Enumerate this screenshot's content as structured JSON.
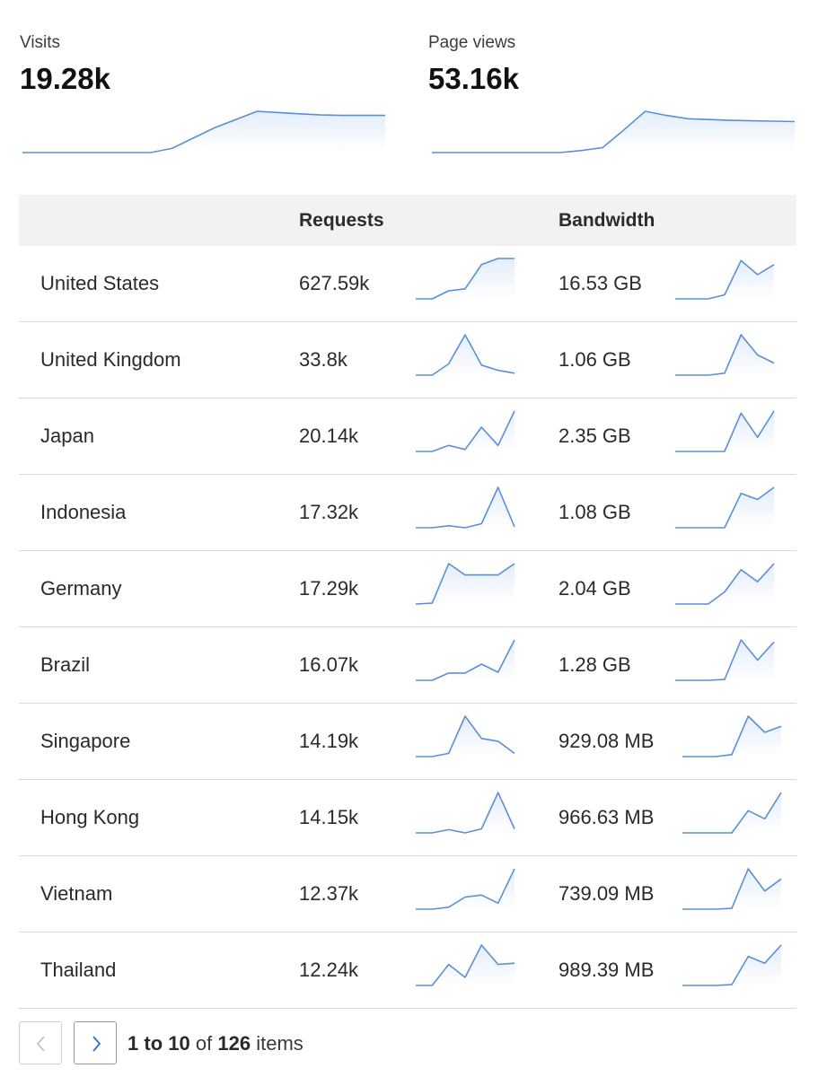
{
  "metrics": {
    "visits": {
      "label": "Visits",
      "value": "19.28k",
      "trend": [
        0,
        0,
        0,
        0,
        0,
        0,
        0,
        0.1,
        0.35,
        0.6,
        0.8,
        1.0,
        0.97,
        0.94,
        0.91,
        0.9,
        0.9,
        0.9
      ]
    },
    "page_views": {
      "label": "Page views",
      "value": "53.16k",
      "trend": [
        0,
        0,
        0,
        0,
        0,
        0,
        0,
        0.05,
        0.12,
        0.55,
        1.0,
        0.9,
        0.82,
        0.8,
        0.78,
        0.77,
        0.76,
        0.75
      ]
    }
  },
  "table": {
    "headers": {
      "country": "",
      "requests": "Requests",
      "bandwidth": "Bandwidth"
    },
    "rows": [
      {
        "country": "United States",
        "requests": "627.59k",
        "bandwidth": "16.53 GB",
        "req_trend": [
          0,
          0,
          0.2,
          0.25,
          0.85,
          1.0,
          1.0
        ],
        "bw_trend": [
          0,
          0,
          0,
          0.1,
          0.95,
          0.6,
          0.85
        ]
      },
      {
        "country": "United Kingdom",
        "requests": "33.8k",
        "bandwidth": "1.06 GB",
        "req_trend": [
          0,
          0,
          0.28,
          1.0,
          0.25,
          0.12,
          0.05
        ],
        "bw_trend": [
          0,
          0,
          0,
          0.05,
          1.0,
          0.5,
          0.3
        ]
      },
      {
        "country": "Japan",
        "requests": "20.14k",
        "bandwidth": "2.35 GB",
        "req_trend": [
          0,
          0,
          0.15,
          0.05,
          0.6,
          0.15,
          1.0
        ],
        "bw_trend": [
          0,
          0,
          0,
          0,
          0.95,
          0.35,
          1.0
        ]
      },
      {
        "country": "Indonesia",
        "requests": "17.32k",
        "bandwidth": "1.08 GB",
        "req_trend": [
          0,
          0,
          0.05,
          0.0,
          0.1,
          1.0,
          0.02
        ],
        "bw_trend": [
          0,
          0,
          0,
          0,
          0.85,
          0.7,
          1.0
        ]
      },
      {
        "country": "Germany",
        "requests": "17.29k",
        "bandwidth": "2.04 GB",
        "req_trend": [
          0,
          0.02,
          1.0,
          0.72,
          0.72,
          0.72,
          1.0
        ],
        "bw_trend": [
          0,
          0,
          0,
          0.3,
          0.85,
          0.55,
          1.0
        ]
      },
      {
        "country": "Brazil",
        "requests": "16.07k",
        "bandwidth": "1.28 GB",
        "req_trend": [
          0,
          0,
          0.18,
          0.18,
          0.4,
          0.2,
          1.0
        ],
        "bw_trend": [
          0,
          0,
          0,
          0.02,
          1.0,
          0.5,
          0.95
        ]
      },
      {
        "country": "Singapore",
        "requests": "14.19k",
        "bandwidth": "929.08 MB",
        "req_trend": [
          0,
          0,
          0.08,
          1.0,
          0.45,
          0.38,
          0.08
        ],
        "bw_trend": [
          0,
          0,
          0,
          0.05,
          1.0,
          0.6,
          0.75
        ]
      },
      {
        "country": "Hong Kong",
        "requests": "14.15k",
        "bandwidth": "966.63 MB",
        "req_trend": [
          0,
          0,
          0.08,
          0,
          0.1,
          1.0,
          0.1
        ],
        "bw_trend": [
          0,
          0,
          0,
          0,
          0.55,
          0.35,
          1.0
        ]
      },
      {
        "country": "Vietnam",
        "requests": "12.37k",
        "bandwidth": "739.09 MB",
        "req_trend": [
          0,
          0,
          0.05,
          0.3,
          0.35,
          0.15,
          1.0
        ],
        "bw_trend": [
          0,
          0,
          0,
          0.02,
          1.0,
          0.45,
          0.75
        ]
      },
      {
        "country": "Thailand",
        "requests": "12.24k",
        "bandwidth": "989.39 MB",
        "req_trend": [
          0,
          0,
          0.52,
          0.2,
          1.0,
          0.52,
          0.55
        ],
        "bw_trend": [
          0,
          0,
          0,
          0.02,
          0.72,
          0.55,
          1.0
        ]
      }
    ]
  },
  "pagination": {
    "range_start": "1",
    "range_to": "to",
    "range_end": "10",
    "of": "of",
    "total": "126",
    "unit": "items"
  },
  "colors": {
    "spark_line": "#5b8fd9",
    "spark_fill_top": "#e3edfb",
    "spark_fill_bottom": "#ffffff",
    "header_bg": "#f2f2f2",
    "row_divider": "#d9d9d9"
  }
}
